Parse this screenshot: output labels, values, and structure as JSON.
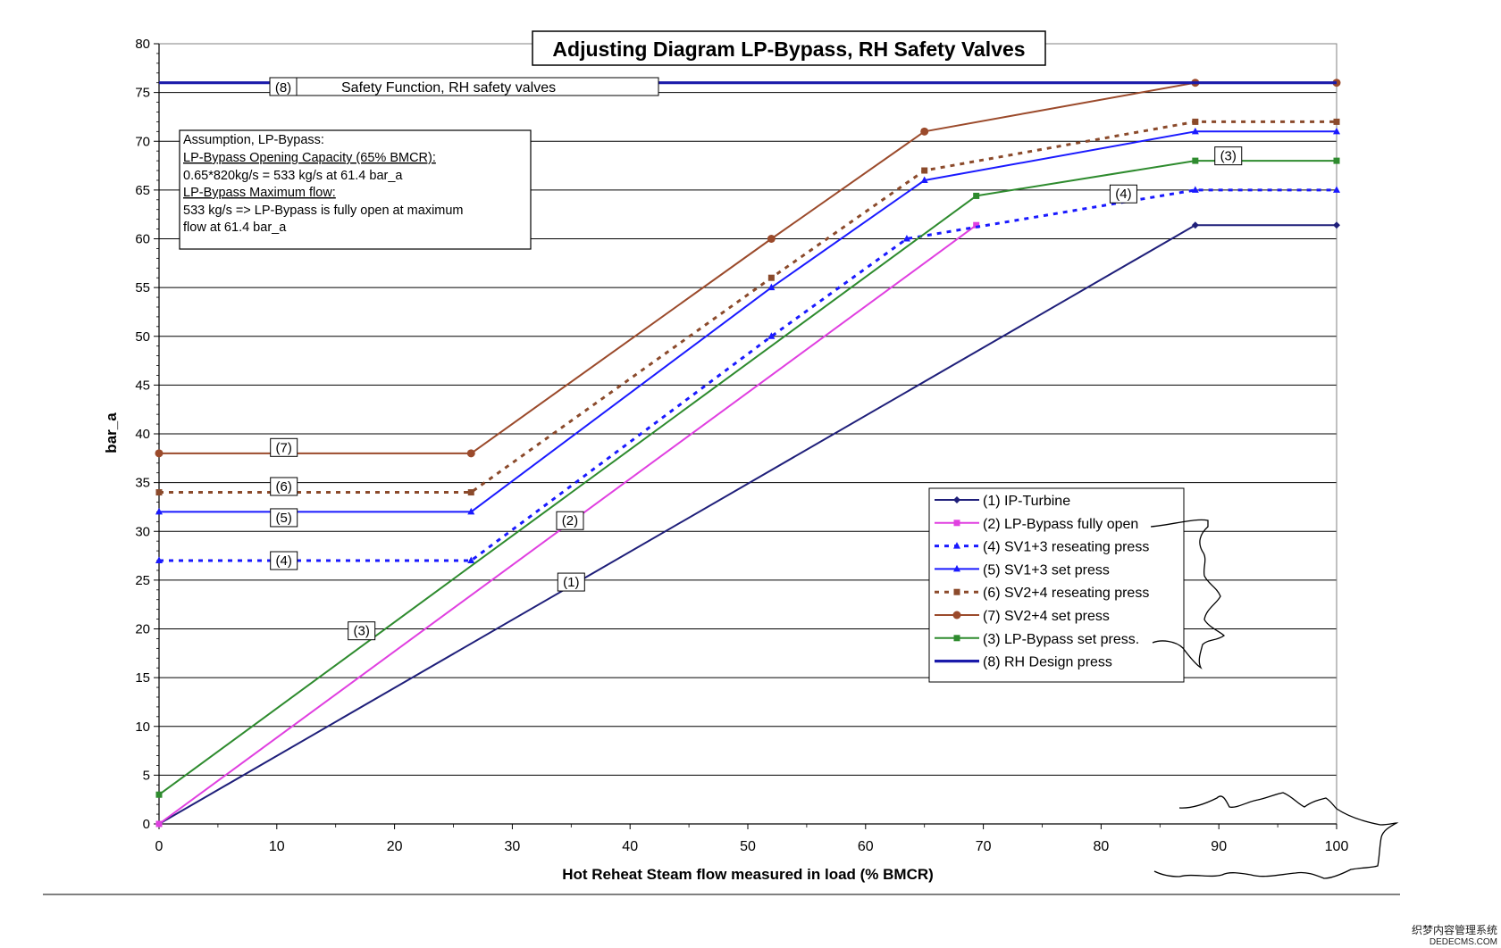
{
  "chart_data": {
    "type": "line",
    "title": "Adjusting Diagram LP-Bypass, RH Safety Valves",
    "xlabel": "Hot Reheat Steam flow  measured in load (% BMCR)",
    "ylabel": "bar_a",
    "xlim": [
      0,
      100
    ],
    "ylim": [
      0,
      80
    ],
    "x_ticks": [
      "0",
      "10",
      "20",
      "30",
      "40",
      "50",
      "60",
      "70",
      "80",
      "90",
      "100"
    ],
    "y_ticks": [
      "0",
      "5",
      "10",
      "15",
      "20",
      "25",
      "30",
      "35",
      "40",
      "45",
      "50",
      "55",
      "60",
      "65",
      "70",
      "75",
      "80"
    ],
    "grid": "horizontal",
    "legend_position": "lower-right",
    "series": [
      {
        "name": "(1) IP-Turbine",
        "color": "#1f1f7a",
        "style": "solid",
        "marker": "diamond",
        "x": [
          0,
          88,
          100
        ],
        "y": [
          0,
          61.4,
          61.4
        ]
      },
      {
        "name": "(2) LP-Bypass fully open",
        "color": "#e040e0",
        "style": "solid",
        "marker": "square",
        "x": [
          0,
          69.4
        ],
        "y": [
          0,
          61.4
        ]
      },
      {
        "name": "(4) SV1+3 reseating press",
        "color": "#1a1aff",
        "style": "dotted",
        "marker": "triangle",
        "x": [
          0,
          26.5,
          52,
          63.5,
          88,
          100
        ],
        "y": [
          27,
          27,
          50,
          60,
          65,
          65
        ]
      },
      {
        "name": "(5) SV1+3 set press",
        "color": "#1a1aff",
        "style": "solid",
        "marker": "triangle",
        "x": [
          0,
          26.5,
          52,
          65,
          88,
          100
        ],
        "y": [
          32,
          32,
          55,
          66,
          71,
          71
        ]
      },
      {
        "name": "(6) SV2+4 reseating press",
        "color": "#8b4a2b",
        "style": "dotted",
        "marker": "square",
        "x": [
          0,
          26.5,
          52,
          65,
          88,
          100
        ],
        "y": [
          34,
          34,
          56,
          67,
          72,
          72
        ]
      },
      {
        "name": "(7) SV2+4 set press",
        "color": "#9b4a2b",
        "style": "solid",
        "marker": "circle",
        "x": [
          0,
          26.5,
          52,
          65,
          88,
          100
        ],
        "y": [
          38,
          38,
          60,
          71,
          76,
          76
        ]
      },
      {
        "name": "(3) LP-Bypass set press.",
        "color": "#2e8b2e",
        "style": "solid",
        "marker": "square",
        "x": [
          0,
          69.4,
          88,
          100
        ],
        "y": [
          3,
          64.4,
          68,
          68
        ]
      },
      {
        "name": "(8) RH Design press",
        "color": "#1a1aaa",
        "style": "solid",
        "marker": "none",
        "x": [
          0,
          100
        ],
        "y": [
          76,
          76
        ]
      }
    ],
    "line_labels": [
      {
        "text": "(8)",
        "x": 10.5,
        "y": 75.6
      },
      {
        "text": "(7)",
        "x": 10.6,
        "y": 38.6
      },
      {
        "text": "(6)",
        "x": 10.6,
        "y": 34.6
      },
      {
        "text": "(5)",
        "x": 10.6,
        "y": 31.4
      },
      {
        "text": "(4)",
        "x": 10.6,
        "y": 27.0
      },
      {
        "text": "(3)",
        "x": 17.2,
        "y": 19.8
      },
      {
        "text": "(2)",
        "x": 34.9,
        "y": 31.1
      },
      {
        "text": "(1)",
        "x": 35.0,
        "y": 24.8
      },
      {
        "text": "(4)",
        "x": 81.9,
        "y": 64.6
      },
      {
        "text": "(3)",
        "x": 90.8,
        "y": 68.5
      }
    ],
    "annotations": {
      "safety_function": "Safety Function, RH safety valves",
      "assumption_lines": [
        "Assumption, LP-Bypass:",
        "LP-Bypass Opening Capacity (65% BMCR):",
        "0.65*820kg/s = 533 kg/s at 61.4 bar_a",
        "LP-Bypass  Maximum flow:",
        "533 kg/s => LP-Bypass is fully open at maximum",
        "flow at 61.4 bar_a"
      ],
      "watermark_lines": [
        "织梦内容管理系统",
        "DEDECMS.COM"
      ]
    }
  }
}
